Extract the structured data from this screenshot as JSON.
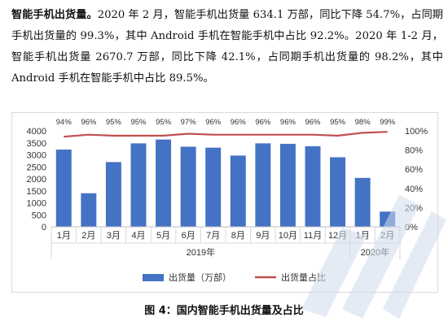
{
  "paragraph": {
    "lead": "智能手机出货量。",
    "text": "2020 年 2 月，智能手机出货量 634.1 万部，同比下降 54.7%，占同期手机出货量的 99.3%，其中 Android 手机在智能手机中占比 92.2%。2020 年 1-2 月，智能手机出货量 2670.7 万部，同比下降 42.1%，占同期手机出货量的 98.2%，其中 Android 手机在智能手机中占比 89.5%。"
  },
  "caption": "图 4：国内智能手机出货量及占比",
  "colors": {
    "bar": "#4472C4",
    "line": "#C0504D",
    "grid": "#d9d9d9",
    "text": "#333333"
  },
  "chart_data": {
    "type": "bar",
    "categories": [
      "1月",
      "2月",
      "3月",
      "4月",
      "5月",
      "6月",
      "7月",
      "8月",
      "9月",
      "10月",
      "11月",
      "12月",
      "1月",
      "2月"
    ],
    "groups": [
      {
        "label": "2019年",
        "count": 12
      },
      {
        "label": "2020年",
        "count": 2
      }
    ],
    "series": [
      {
        "name": "出货量（万部）",
        "type": "bar",
        "axis": "left",
        "values": [
          3220,
          1400,
          2700,
          3480,
          3640,
          3340,
          3300,
          2970,
          3480,
          3460,
          3360,
          2900,
          2040,
          634
        ]
      },
      {
        "name": "出货量占比",
        "type": "line",
        "axis": "right",
        "values": [
          94,
          96,
          95,
          95,
          95,
          97,
          96,
          96,
          96,
          96,
          96,
          95,
          98,
          99
        ],
        "labels": [
          "94%",
          "96%",
          "95%",
          "95%",
          "95%",
          "97%",
          "96%",
          "96%",
          "96%",
          "96%",
          "96%",
          "95%",
          "98%",
          "99%"
        ]
      }
    ],
    "ylim": [
      0,
      4000
    ],
    "yticks": [
      "0",
      "500",
      "1000",
      "1500",
      "2000",
      "2500",
      "3000",
      "3500",
      "4000"
    ],
    "y2lim": [
      0,
      100
    ],
    "y2ticks": [
      "0%",
      "20%",
      "40%",
      "60%",
      "80%",
      "100%"
    ],
    "legend_position": "bottom"
  }
}
